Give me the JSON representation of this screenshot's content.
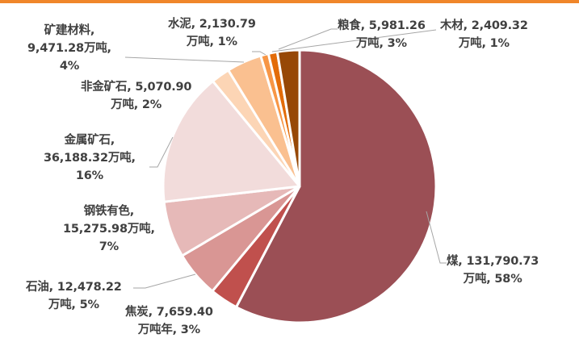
{
  "chart_data": {
    "type": "pie",
    "title": "",
    "unit": "万吨",
    "start_angle_deg": 0,
    "direction": "clockwise",
    "slices": [
      {
        "name": "煤",
        "value": 131790.73,
        "percent": "58%",
        "color": "#9b4f55",
        "label_lines": [
          "煤, 131,790.73",
          "万吨, 58%"
        ]
      },
      {
        "name": "焦炭",
        "value": 7659.4,
        "percent": "3%",
        "color": "#c0504d",
        "label_lines": [
          "焦炭, 7,659.40",
          "万吨年, 3%"
        ]
      },
      {
        "name": "石油",
        "value": 12478.22,
        "percent": "5%",
        "color": "#d99694",
        "label_lines": [
          "石油, 12,478.22",
          "万吨, 5%"
        ]
      },
      {
        "name": "钢铁有色",
        "value": 15275.98,
        "percent": "7%",
        "color": "#e6b9b8",
        "label_lines": [
          "钢铁有色,",
          "15,275.98万吨,",
          "7%"
        ]
      },
      {
        "name": "金属矿石",
        "value": 36188.32,
        "percent": "16%",
        "color": "#f2dcdb",
        "label_lines": [
          "金属矿石,",
          "36,188.32万吨,",
          "16%"
        ]
      },
      {
        "name": "非金矿石",
        "value": 5070.9,
        "percent": "2%",
        "color": "#fcd5b5",
        "label_lines": [
          "非金矿石, 5,070.90",
          "万吨, 2%"
        ]
      },
      {
        "name": "矿建材料",
        "value": 9471.28,
        "percent": "4%",
        "color": "#fac090",
        "label_lines": [
          "矿建材料,",
          "9,471.28万吨,",
          "4%"
        ]
      },
      {
        "name": "水泥",
        "value": 2130.79,
        "percent": "1%",
        "color": "#f79646",
        "label_lines": [
          "水泥, 2,130.79",
          "万吨, 1%"
        ]
      },
      {
        "name": "木材",
        "value": 2409.32,
        "percent": "1%",
        "color": "#e36c09",
        "label_lines": [
          "木材, 2,409.32",
          "万吨, 1%"
        ]
      },
      {
        "name": "粮食",
        "value": 5981.26,
        "percent": "3%",
        "color": "#974806",
        "label_lines": [
          "粮食, 5,981.26",
          "万吨, 3%"
        ]
      }
    ],
    "legend": "none",
    "data_labels": "outside with leader lines"
  },
  "style": {
    "accent_bar_color": "#f0862a",
    "label_color": "#404040",
    "leader_line_color": "#a6a6a6"
  },
  "labels": {
    "coal": {
      "l0": "煤, 131,790.73",
      "l1": "万吨, 58%"
    },
    "coke": {
      "l0": "焦炭, 7,659.40",
      "l1": "万吨年, 3%"
    },
    "oil": {
      "l0": "石油, 12,478.22",
      "l1": "万吨, 5%"
    },
    "steel": {
      "l0": "钢铁有色,",
      "l1": "15,275.98万吨,",
      "l2": "7%"
    },
    "metal_ore": {
      "l0": "金属矿石,",
      "l1": "36,188.32万吨,",
      "l2": "16%"
    },
    "nonmetal_ore": {
      "l0": "非金矿石, 5,070.90",
      "l1": "万吨, 2%"
    },
    "building_materials": {
      "l0": "矿建材料,",
      "l1": "9,471.28万吨,",
      "l2": "4%"
    },
    "cement": {
      "l0": "水泥, 2,130.79",
      "l1": "万吨, 1%"
    },
    "grain": {
      "l0": "粮食, 5,981.26",
      "l1": "万吨, 3%"
    },
    "timber": {
      "l0": "木材, 2,409.32",
      "l1": "万吨, 1%"
    }
  }
}
